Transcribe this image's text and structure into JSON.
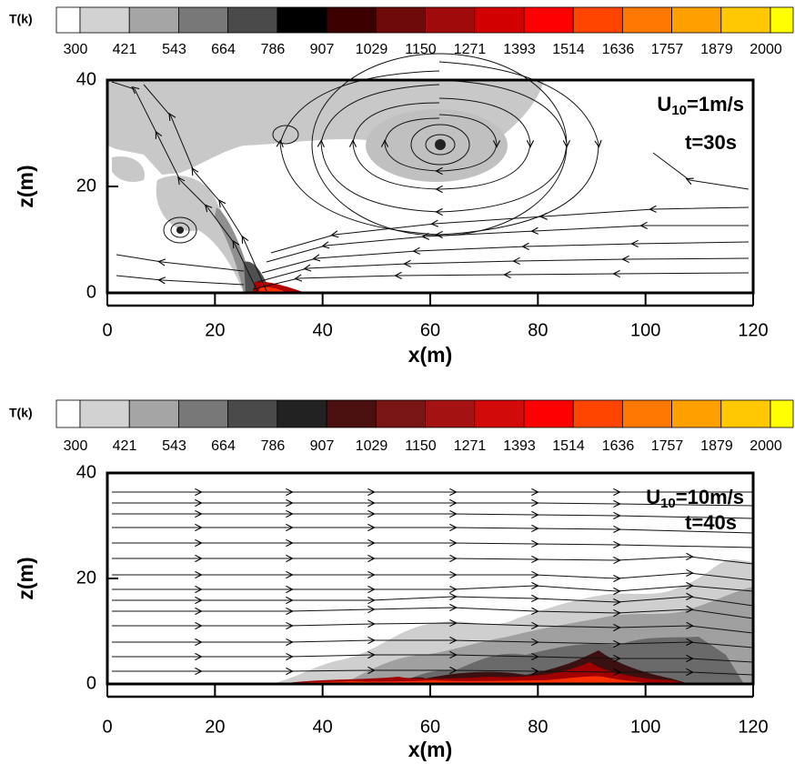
{
  "chart_data": [
    {
      "type": "contour",
      "colorbar_label": "T(k)",
      "colorbar_ticks": [
        300,
        421,
        543,
        664,
        786,
        907,
        1029,
        1150,
        1271,
        1393,
        1514,
        1636,
        1757,
        1879,
        2000
      ],
      "clim": [
        300,
        2000
      ],
      "colorbar_colors": [
        "#ffffff",
        "#d2d2d2",
        "#a5a5a5",
        "#787878",
        "#4a4a4a",
        "#000000",
        "#3c0000",
        "#6e0a0a",
        "#a00a0a",
        "#d20000",
        "#ff0000",
        "#ff4500",
        "#ff7800",
        "#ffa000",
        "#ffc800",
        "#ffff00"
      ],
      "xlabel": "x(m)",
      "ylabel": "z(m)",
      "xlim": [
        0,
        120
      ],
      "ylim": [
        0,
        40
      ],
      "xticks": [
        0,
        20,
        40,
        60,
        80,
        100,
        120
      ],
      "yticks": [
        0,
        20,
        40
      ],
      "wind_label": {
        "symbol": "U",
        "subscript": "10",
        "value": "=1m/s"
      },
      "time_label": "t=30s"
    },
    {
      "type": "contour",
      "colorbar_label": "T(k)",
      "colorbar_ticks": [
        300,
        421,
        543,
        664,
        786,
        907,
        1029,
        1150,
        1271,
        1393,
        1514,
        1636,
        1757,
        1879,
        2000
      ],
      "clim": [
        300,
        2000
      ],
      "colorbar_colors": [
        "#ffffff",
        "#d2d2d2",
        "#a5a5a5",
        "#787878",
        "#4a4a4a",
        "#222222",
        "#4a1010",
        "#7a1515",
        "#a51212",
        "#d20a0a",
        "#ff0000",
        "#ff4500",
        "#ff7800",
        "#ffa000",
        "#ffc800",
        "#ffff00"
      ],
      "xlabel": "x(m)",
      "ylabel": "z(m)",
      "xlim": [
        0,
        120
      ],
      "ylim": [
        0,
        40
      ],
      "xticks": [
        0,
        20,
        40,
        60,
        80,
        100,
        120
      ],
      "yticks": [
        0,
        20,
        40
      ],
      "wind_label": {
        "symbol": "U",
        "subscript": "10",
        "value": "=10m/s"
      },
      "time_label": "t=40s"
    }
  ]
}
